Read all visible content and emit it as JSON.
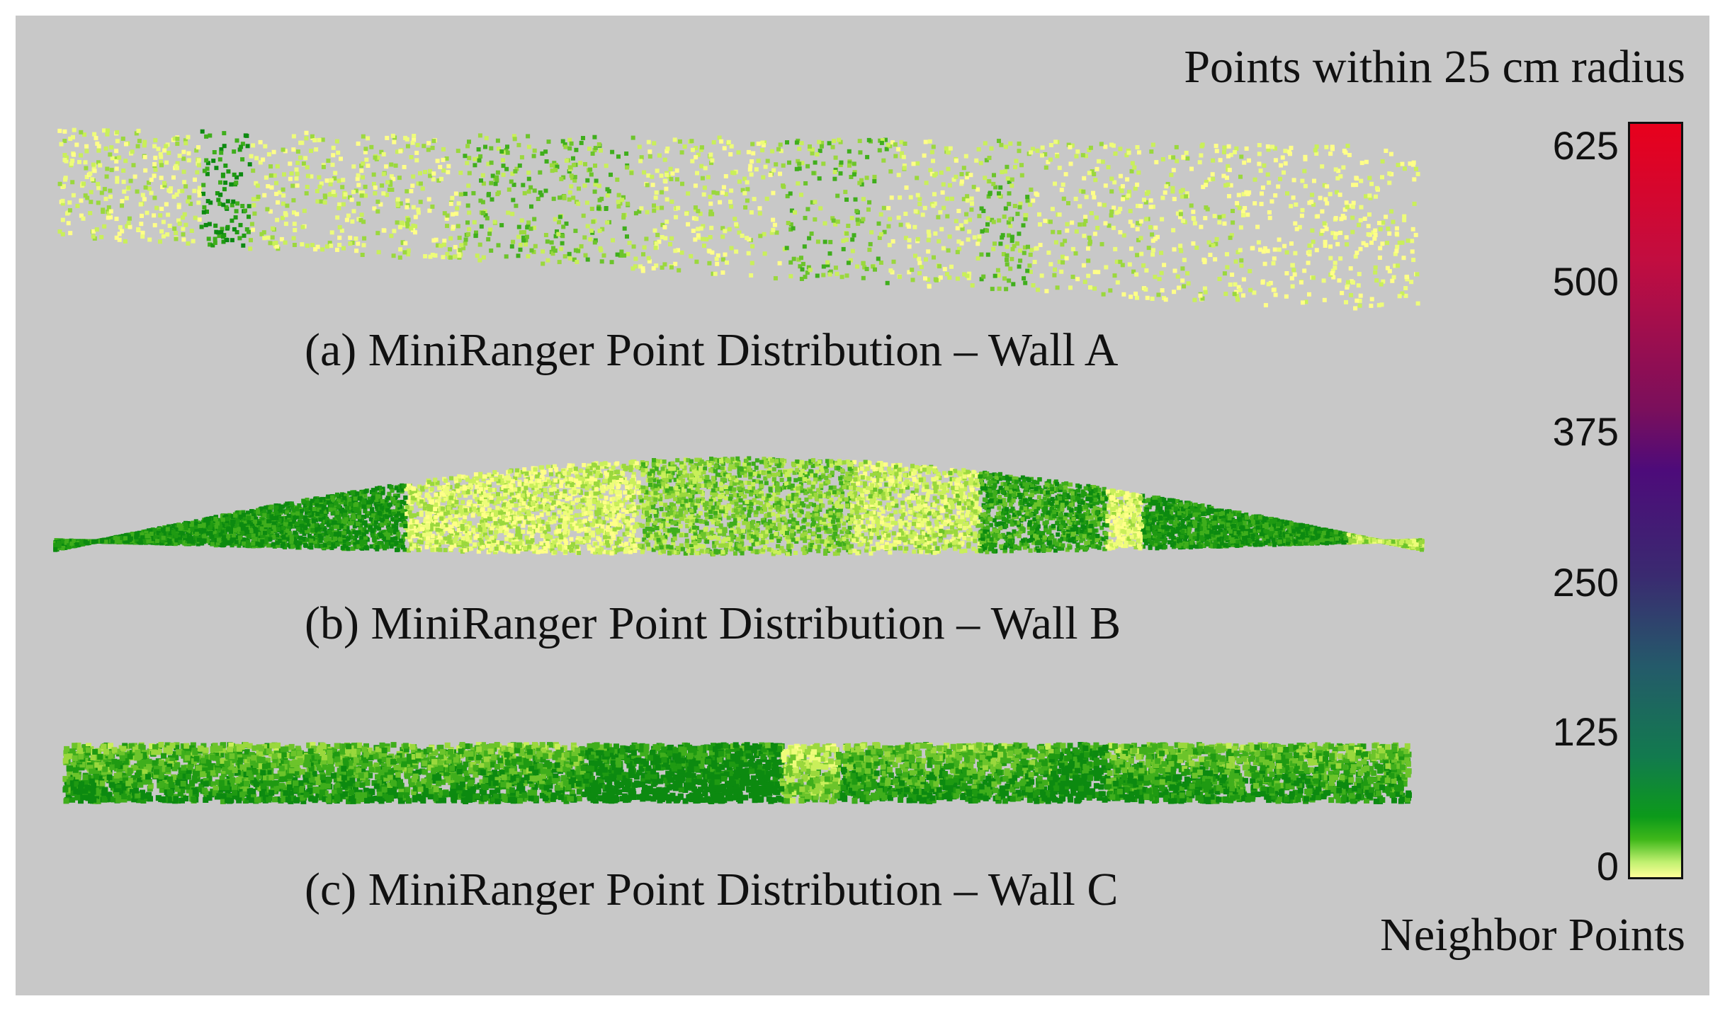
{
  "legend": {
    "title": "Points within 25 cm radius",
    "subtitle": "Neighbor Points",
    "ticks": [
      "625",
      "500",
      "375",
      "250",
      "125",
      "0"
    ],
    "colors": [
      "#ffff99",
      "#c0f070",
      "#3fb81a",
      "#0c9a1a",
      "#127a4e",
      "#245a6a",
      "#4d0b7a",
      "#7a0f5c",
      "#e8001c"
    ]
  },
  "panels": [
    {
      "id": "a",
      "caption": "(a) MiniRanger Point Distribution – Wall A"
    },
    {
      "id": "b",
      "caption": "(b) MiniRanger Point Distribution – Wall B"
    },
    {
      "id": "c",
      "caption": "(c) MiniRanger Point Distribution – Wall C"
    }
  ],
  "background_color": "#c8c8c8"
}
